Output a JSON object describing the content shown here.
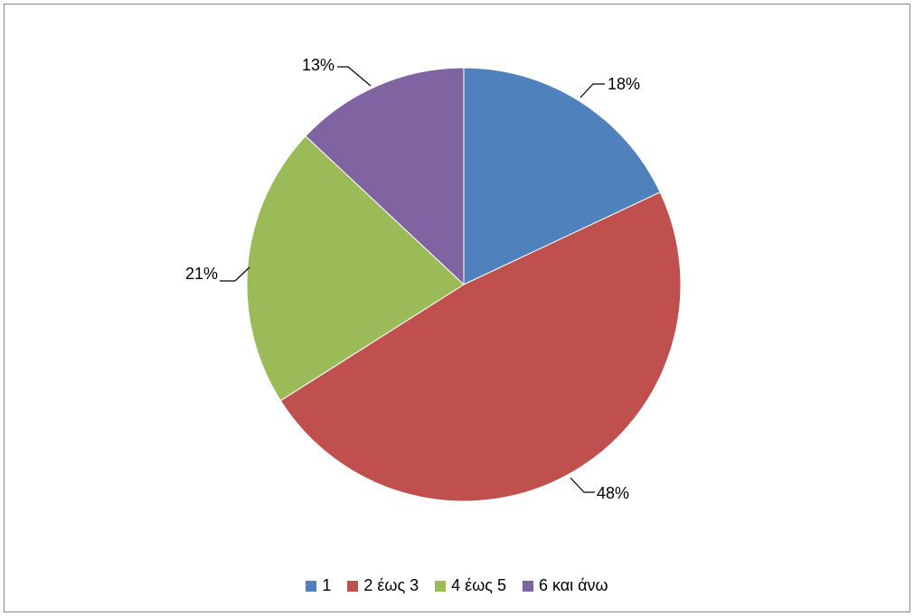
{
  "chart_data": {
    "type": "pie",
    "categories": [
      "1",
      "2 έως 3",
      "4 έως 5",
      "6 και άνω"
    ],
    "values": [
      18,
      48,
      21,
      13
    ],
    "data_labels": [
      "18%",
      "48%",
      "21%",
      "13%"
    ],
    "colors": [
      "#4F81BD",
      "#C0504D",
      "#9BBB59",
      "#8064A2"
    ],
    "start_angle": "12 o'clock, clockwise",
    "legend": "bottom"
  }
}
